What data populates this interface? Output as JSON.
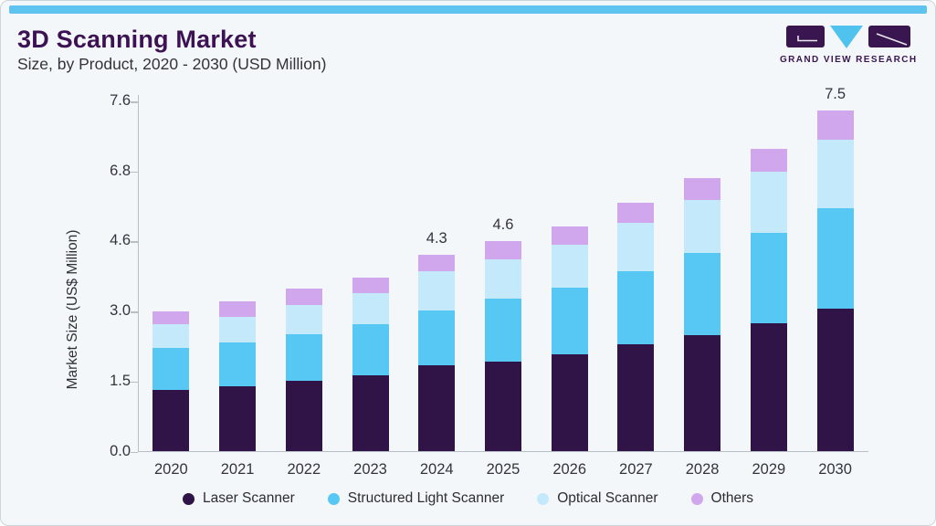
{
  "header": {
    "title": "3D Scanning Market",
    "subtitle": "Size, by Product, 2020 - 2030 (USD Million)"
  },
  "logo": {
    "name": "Grand View Research logo",
    "wordmark": "GRAND VIEW RESEARCH",
    "brand_dark": "#3a1650",
    "brand_blue": "#4fc2ee"
  },
  "chart_data": {
    "type": "bar",
    "stacked": true,
    "title": "3D Scanning Market Size, by Product, 2020 - 2030 (USD Million)",
    "ylabel": "Market Size (US$ Million)",
    "xlabel": "",
    "categories": [
      "2020",
      "2021",
      "2022",
      "2023",
      "2024",
      "2025",
      "2026",
      "2027",
      "2028",
      "2029",
      "2030"
    ],
    "series": [
      {
        "name": "Laser Scanner",
        "color": "#311447",
        "values": [
          1.32,
          1.4,
          1.51,
          1.64,
          1.84,
          1.93,
          2.09,
          2.29,
          2.49,
          2.75,
          3.07
        ]
      },
      {
        "name": "Structured Light Scanner",
        "color": "#57c8f4",
        "values": [
          0.89,
          0.94,
          1.0,
          1.08,
          1.18,
          1.36,
          1.45,
          1.63,
          1.84,
          2.13,
          2.58
        ]
      },
      {
        "name": "Optical Scanner",
        "color": "#c3e9fb",
        "values": [
          0.52,
          0.55,
          0.63,
          0.7,
          0.9,
          0.91,
          0.99,
          1.27,
          1.58,
          1.9,
          1.51
        ]
      },
      {
        "name": "Others",
        "color": "#d0a7ec",
        "values": [
          0.27,
          0.34,
          0.38,
          0.35,
          0.38,
          0.4,
          0.54,
          0.62,
          0.69,
          0.28,
          0.34
        ]
      }
    ],
    "totals": [
      3.0,
      3.23,
      3.52,
      3.77,
      4.3,
      4.6,
      5.07,
      5.81,
      6.6,
      7.06,
      7.5
    ],
    "value_labels": {
      "2024": "4.3",
      "2025": "4.6",
      "2030": "7.5"
    },
    "y_ticks": [
      0.0,
      1.5,
      3.0,
      4.6,
      6.8,
      7.6
    ],
    "y_tick_labels": [
      "0.0",
      "1.5",
      "3.0",
      "4.6",
      "6.8",
      "7.6"
    ],
    "y_scale": "piecewise-linear: ticks evenly spaced",
    "grid": false,
    "legend_position": "bottom"
  }
}
